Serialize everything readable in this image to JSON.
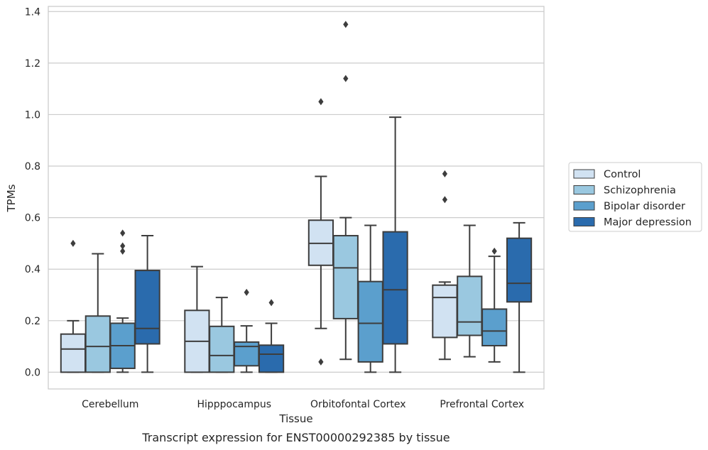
{
  "chart_data": {
    "type": "boxplot",
    "title": "Transcript expression for ENST00000292385 by tissue",
    "xlabel": "Tissue",
    "ylabel": "TPMs",
    "ylim": [
      -0.065,
      1.42
    ],
    "yticks": [
      "0.0",
      "0.2",
      "0.4",
      "0.6",
      "0.8",
      "1.0",
      "1.2",
      "1.4"
    ],
    "grid": true,
    "legend_position": "right",
    "categories": [
      "Cerebellum",
      "Hipppocampus",
      "Orbitofontal Cortex",
      "Prefrontal Cortex"
    ],
    "series": [
      {
        "name": "Control",
        "color": "#d1e2f2",
        "boxes": [
          {
            "whislo": 0.0,
            "q1": 0.0,
            "med": 0.09,
            "q3": 0.148,
            "whishi": 0.2,
            "fliers": [
              0.5
            ]
          },
          {
            "whislo": 0.0,
            "q1": 0.0,
            "med": 0.12,
            "q3": 0.24,
            "whishi": 0.41,
            "fliers": []
          },
          {
            "whislo": 0.17,
            "q1": 0.415,
            "med": 0.5,
            "q3": 0.59,
            "whishi": 0.76,
            "fliers": [
              1.05,
              0.04
            ]
          },
          {
            "whislo": 0.05,
            "q1": 0.135,
            "med": 0.29,
            "q3": 0.338,
            "whishi": 0.35,
            "fliers": [
              0.77,
              0.67
            ]
          }
        ]
      },
      {
        "name": "Schizophrenia",
        "color": "#9ac8e0",
        "boxes": [
          {
            "whislo": 0.0,
            "q1": 0.0,
            "med": 0.1,
            "q3": 0.218,
            "whishi": 0.46,
            "fliers": []
          },
          {
            "whislo": 0.0,
            "q1": 0.0,
            "med": 0.065,
            "q3": 0.178,
            "whishi": 0.29,
            "fliers": []
          },
          {
            "whislo": 0.05,
            "q1": 0.208,
            "med": 0.405,
            "q3": 0.53,
            "whishi": 0.6,
            "fliers": [
              1.35,
              1.14
            ]
          },
          {
            "whislo": 0.06,
            "q1": 0.143,
            "med": 0.195,
            "q3": 0.372,
            "whishi": 0.57,
            "fliers": []
          }
        ]
      },
      {
        "name": "Bipolar disorder",
        "color": "#5b9fcd",
        "boxes": [
          {
            "whislo": 0.0,
            "q1": 0.015,
            "med": 0.103,
            "q3": 0.19,
            "whishi": 0.21,
            "fliers": [
              0.54,
              0.49,
              0.47
            ]
          },
          {
            "whislo": 0.0,
            "q1": 0.025,
            "med": 0.1,
            "q3": 0.117,
            "whishi": 0.18,
            "fliers": [
              0.31
            ]
          },
          {
            "whislo": 0.0,
            "q1": 0.04,
            "med": 0.19,
            "q3": 0.352,
            "whishi": 0.57,
            "fliers": []
          },
          {
            "whislo": 0.04,
            "q1": 0.103,
            "med": 0.16,
            "q3": 0.245,
            "whishi": 0.45,
            "fliers": [
              0.47
            ]
          }
        ]
      },
      {
        "name": "Major depression",
        "color": "#2a6bad",
        "boxes": [
          {
            "whislo": 0.0,
            "q1": 0.11,
            "med": 0.17,
            "q3": 0.395,
            "whishi": 0.53,
            "fliers": []
          },
          {
            "whislo": 0.0,
            "q1": 0.0,
            "med": 0.07,
            "q3": 0.105,
            "whishi": 0.19,
            "fliers": [
              0.27
            ]
          },
          {
            "whislo": 0.0,
            "q1": 0.11,
            "med": 0.32,
            "q3": 0.545,
            "whishi": 0.99,
            "fliers": []
          },
          {
            "whislo": 0.0,
            "q1": 0.273,
            "med": 0.345,
            "q3": 0.52,
            "whishi": 0.58,
            "fliers": []
          }
        ]
      }
    ]
  }
}
